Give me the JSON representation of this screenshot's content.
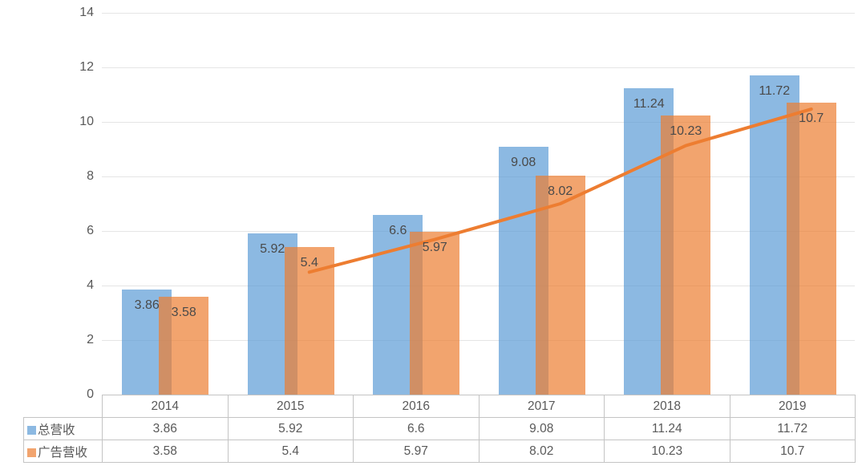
{
  "chart_data": {
    "type": "combo-bar-line",
    "title": "",
    "categories": [
      "2014",
      "2015",
      "2016",
      "2017",
      "2018",
      "2019"
    ],
    "series": [
      {
        "name": "总营收",
        "slug": "total-revenue",
        "type": "bar",
        "color": "#5B9BD5",
        "opacity": 0.7,
        "values": [
          3.86,
          5.92,
          6.6,
          9.08,
          11.24,
          11.72
        ]
      },
      {
        "name": "广告营收",
        "slug": "ad-revenue",
        "type": "bar",
        "color": "#ED7D31",
        "opacity": 0.7,
        "values": [
          3.58,
          5.4,
          5.97,
          8.02,
          10.23,
          10.7
        ]
      }
    ],
    "trendline": {
      "based_on": "广告营收",
      "kind": "moving-average-2-period",
      "color": "#ED7D31",
      "stroke_width": 4,
      "x_categories": [
        "2015",
        "2016",
        "2017",
        "2018",
        "2019"
      ],
      "values": [
        4.49,
        5.69,
        7.0,
        9.13,
        10.47
      ]
    },
    "y_axis": {
      "min": 0,
      "max": 14,
      "step": 2,
      "ticks": [
        0,
        2,
        4,
        6,
        8,
        10,
        12,
        14
      ]
    },
    "grid": true,
    "data_labels": true,
    "data_table": true,
    "legend_position": "data-table-left",
    "gridline_color": "#E5E5E5",
    "table_border_color": "#C4C4C4",
    "text_color": "#595959"
  }
}
